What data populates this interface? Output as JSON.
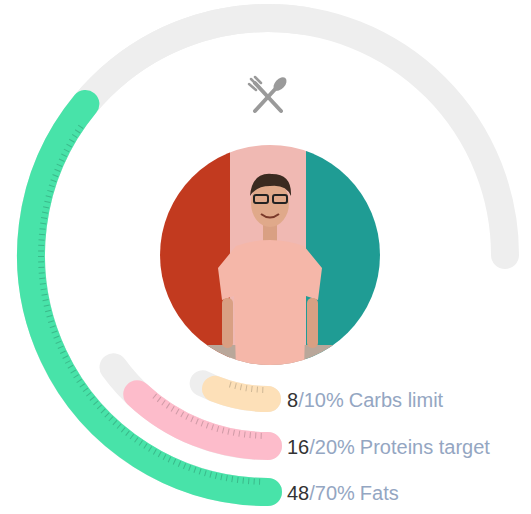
{
  "chart_data": {
    "type": "radial_bar",
    "ylim": [
      0,
      100
    ],
    "tick_labels": false,
    "series": [
      {
        "name": "Fats",
        "color": "#48e3a9",
        "values": [
          48
        ],
        "target": 70,
        "target_label": "/70%"
      },
      {
        "name": "Proteins target",
        "color": "#fdbccb",
        "values": [
          16
        ],
        "target": 20,
        "target_label": "/20%"
      },
      {
        "name": "Carbs limit",
        "color": "#fde0b8",
        "values": [
          8
        ],
        "target": 10,
        "target_label": "/10%"
      }
    ]
  }
}
